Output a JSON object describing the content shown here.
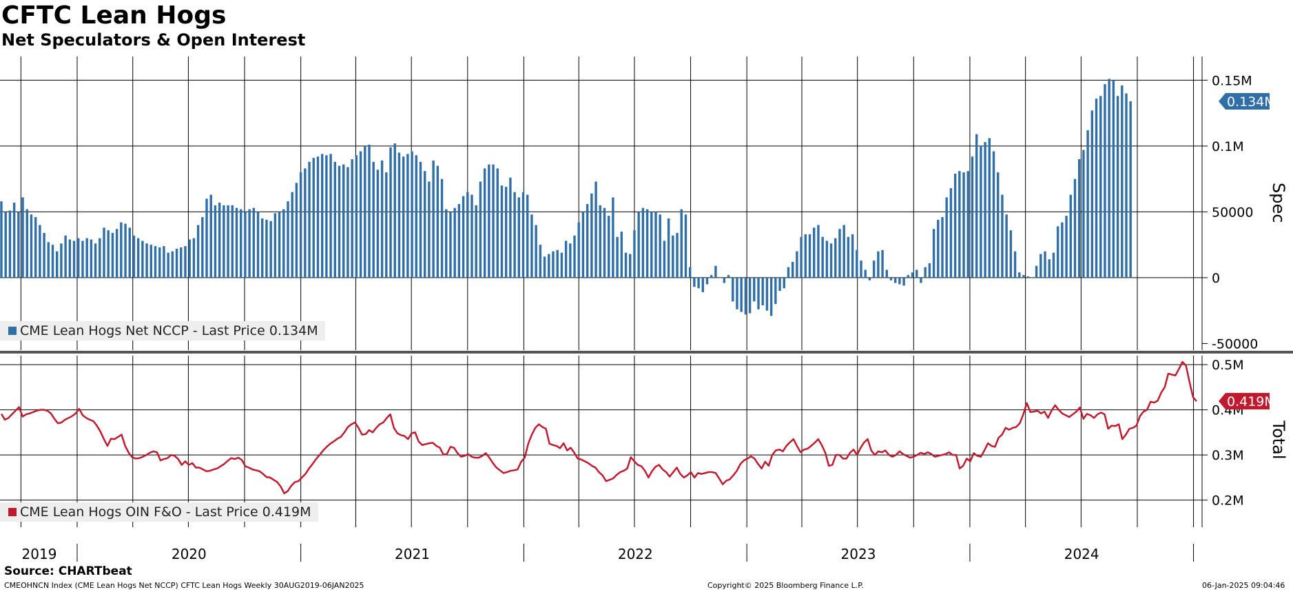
{
  "header": {
    "title": "CFTC Lean Hogs",
    "subtitle": "Net Speculators & Open Interest"
  },
  "footer": {
    "source": "Source: CHARTbeat",
    "index_info": "CMEOHNCN Index (CME Lean Hogs Net NCCP) CFTC Lean Hogs  Weekly 30AUG2019-06JAN2025",
    "copyright": "Copyright© 2025 Bloomberg Finance L.P.",
    "timestamp": "06-Jan-2025 09:04:46"
  },
  "colors": {
    "spec_bar": "#2f6ea6",
    "total_line": "#c01a2e",
    "grid": "#000000"
  },
  "chart_data": [
    {
      "type": "bar",
      "panel": "top",
      "ylabel": "Spec",
      "legend": "CME Lean Hogs Net NCCP - Last Price 0.134M",
      "last_value_label": "0.134M",
      "last_value": 134000,
      "ylim": [
        -55000,
        168000
      ],
      "yticks": [
        {
          "value": 150000,
          "label": "0.15M"
        },
        {
          "value": 100000,
          "label": "0.1M"
        },
        {
          "value": 50000,
          "label": "50000"
        },
        {
          "value": 0,
          "label": "0"
        },
        {
          "value": -50000,
          "label": "-50000"
        }
      ],
      "x_start": "2019-08-30",
      "x_end": "2025-01-06",
      "frequency": "weekly",
      "series": [
        {
          "values": [
            58000,
            50000,
            51000,
            57000,
            50000,
            61000,
            52000,
            48000,
            46000,
            40000,
            34000,
            27000,
            25000,
            20000,
            26000,
            32000,
            29000,
            28000,
            30000,
            28000,
            30000,
            29000,
            26000,
            30000,
            38000,
            36000,
            34000,
            37000,
            42000,
            41000,
            38000,
            32000,
            30000,
            28000,
            26000,
            25000,
            24000,
            23000,
            24000,
            19000,
            20000,
            22000,
            23000,
            24000,
            29000,
            30000,
            40000,
            46000,
            60000,
            63000,
            55000,
            57000,
            55000,
            55000,
            55000,
            53000,
            52000,
            50000,
            52000,
            53000,
            50000,
            45000,
            44000,
            43000,
            49000,
            50000,
            52000,
            58000,
            65000,
            72000,
            80000,
            83000,
            88000,
            91000,
            92000,
            94000,
            93000,
            94000,
            88000,
            85000,
            86000,
            84000,
            90000,
            93000,
            96000,
            100000,
            101000,
            88000,
            82000,
            89000,
            80000,
            99000,
            102000,
            95000,
            92000,
            94000,
            96000,
            93000,
            88000,
            81000,
            73000,
            89000,
            85000,
            75000,
            52000,
            50000,
            53000,
            56000,
            62000,
            65000,
            63000,
            55000,
            73000,
            83000,
            86000,
            86000,
            83000,
            70000,
            69000,
            76000,
            65000,
            61000,
            65000,
            63000,
            48000,
            40000,
            25000,
            16000,
            18000,
            20000,
            21000,
            19000,
            28000,
            26000,
            32000,
            42000,
            50000,
            56000,
            64000,
            73000,
            55000,
            53000,
            47000,
            61000,
            31000,
            35000,
            19000,
            18000,
            36000,
            50000,
            53000,
            52000,
            50000,
            50000,
            48000,
            28000,
            45000,
            32000,
            34000,
            52000,
            48000,
            8000,
            -7000,
            -8000,
            -11000,
            -5000,
            2000,
            9000,
            0,
            -4000,
            2000,
            -18000,
            -24000,
            -26000,
            -28000,
            -27000,
            -18000,
            -24000,
            -21000,
            -25000,
            -29000,
            -20000,
            -10000,
            -8000,
            8000,
            12000,
            20000,
            31000,
            33000,
            33000,
            38000,
            40000,
            31000,
            28000,
            26000,
            30000,
            37000,
            40000,
            31000,
            33000,
            21000,
            13000,
            6000,
            -2000,
            13000,
            20000,
            21000,
            6000,
            -2000,
            -4000,
            -5000,
            -6000,
            2000,
            4000,
            6000,
            -4000,
            8000,
            11000,
            37000,
            44000,
            46000,
            61000,
            68000,
            79000,
            81000,
            80000,
            81000,
            92000,
            109000,
            100000,
            103000,
            106000,
            96000,
            80000,
            63000,
            48000,
            36000,
            20000,
            4000,
            2000,
            1000,
            0,
            9000,
            18000,
            20000,
            14000,
            19000,
            39000,
            42000,
            47000,
            63000,
            75000,
            90000,
            97000,
            112000,
            127000,
            136000,
            138000,
            147000,
            151000,
            150000,
            138000,
            146000,
            140000,
            134000
          ]
        }
      ]
    },
    {
      "type": "line",
      "panel": "bottom",
      "ylabel": "Total",
      "legend": "CME Lean Hogs OIN F&O - Last Price 0.419M",
      "last_value_label": "0.419M",
      "last_value": 419000,
      "ylim": [
        140000,
        520000
      ],
      "yticks": [
        {
          "value": 500000,
          "label": "0.5M"
        },
        {
          "value": 400000,
          "label": "0.4M"
        },
        {
          "value": 300000,
          "label": "0.3M"
        },
        {
          "value": 200000,
          "label": "0.2M"
        }
      ],
      "x_start": "2019-08-30",
      "x_end": "2025-01-06",
      "frequency": "weekly",
      "series": [
        {
          "values": [
            391000,
            378000,
            382000,
            390000,
            398000,
            406000,
            385000,
            390000,
            392000,
            395000,
            398000,
            400000,
            400000,
            398000,
            392000,
            380000,
            370000,
            372000,
            378000,
            382000,
            386000,
            392000,
            402000,
            388000,
            382000,
            378000,
            375000,
            365000,
            352000,
            335000,
            320000,
            336000,
            335000,
            340000,
            345000,
            320000,
            305000,
            295000,
            292000,
            293000,
            296000,
            300000,
            305000,
            308000,
            306000,
            288000,
            291000,
            293000,
            300000,
            298000,
            291000,
            278000,
            286000,
            278000,
            282000,
            272000,
            272000,
            268000,
            264000,
            265000,
            268000,
            270000,
            275000,
            280000,
            287000,
            293000,
            291000,
            294000,
            289000,
            275000,
            272000,
            268000,
            266000,
            264000,
            258000,
            251000,
            250000,
            245000,
            240000,
            230000,
            215000,
            220000,
            232000,
            240000,
            242000,
            250000,
            258000,
            270000,
            280000,
            291000,
            300000,
            310000,
            318000,
            325000,
            330000,
            336000,
            340000,
            350000,
            362000,
            368000,
            372000,
            360000,
            345000,
            346000,
            355000,
            350000,
            360000,
            368000,
            372000,
            382000,
            390000,
            360000,
            348000,
            344000,
            342000,
            335000,
            348000,
            350000,
            330000,
            322000,
            324000,
            326000,
            327000,
            320000,
            316000,
            301000,
            302000,
            318000,
            316000,
            304000,
            296000,
            298000,
            302000,
            296000,
            294000,
            294000,
            298000,
            304000,
            294000,
            282000,
            272000,
            266000,
            260000,
            262000,
            265000,
            266000,
            268000,
            285000,
            294000,
            325000,
            345000,
            360000,
            368000,
            362000,
            358000,
            325000,
            322000,
            320000,
            315000,
            326000,
            310000,
            316000,
            305000,
            292000,
            290000,
            286000,
            282000,
            276000,
            272000,
            262000,
            255000,
            242000,
            245000,
            248000,
            256000,
            262000,
            265000,
            270000,
            295000,
            286000,
            278000,
            275000,
            265000,
            250000,
            264000,
            274000,
            278000,
            268000,
            262000,
            252000,
            262000,
            272000,
            258000,
            250000,
            255000,
            262000,
            250000,
            260000,
            258000,
            260000,
            262000,
            262000,
            260000,
            248000,
            235000,
            243000,
            246000,
            255000,
            265000,
            280000,
            288000,
            292000,
            297000,
            292000,
            280000,
            270000,
            285000,
            276000,
            300000,
            310000,
            312000,
            308000,
            320000,
            328000,
            335000,
            320000,
            306000,
            312000,
            314000,
            320000,
            327000,
            335000,
            322000,
            305000,
            276000,
            278000,
            300000,
            300000,
            292000,
            292000,
            305000,
            312000,
            300000,
            316000,
            328000,
            335000,
            310000,
            300000,
            308000,
            306000,
            310000,
            300000,
            296000,
            300000,
            308000,
            302000,
            298000,
            294000,
            296000,
            300000,
            305000,
            302000,
            306000,
            302000,
            296000,
            298000,
            300000,
            302000,
            306000,
            300000,
            300000,
            270000,
            276000,
            292000,
            286000,
            304000,
            298000,
            296000,
            310000,
            326000,
            320000,
            318000,
            338000,
            345000,
            360000,
            356000,
            360000,
            362000,
            370000,
            390000,
            415000,
            395000,
            396000,
            398000,
            392000,
            396000,
            382000,
            398000,
            410000,
            400000,
            392000,
            388000,
            384000,
            390000,
            396000,
            405000,
            380000,
            391000,
            388000,
            382000,
            390000,
            394000,
            390000,
            358000,
            365000,
            364000,
            368000,
            335000,
            345000,
            358000,
            360000,
            365000,
            386000,
            396000,
            400000,
            418000,
            416000,
            420000,
            438000,
            450000,
            480000,
            478000,
            476000,
            490000,
            506000,
            498000,
            462000,
            428000,
            419000
          ]
        }
      ]
    }
  ],
  "x_axis": {
    "year_labels": [
      "2019",
      "2020",
      "2021",
      "2022",
      "2023",
      "2024"
    ]
  }
}
